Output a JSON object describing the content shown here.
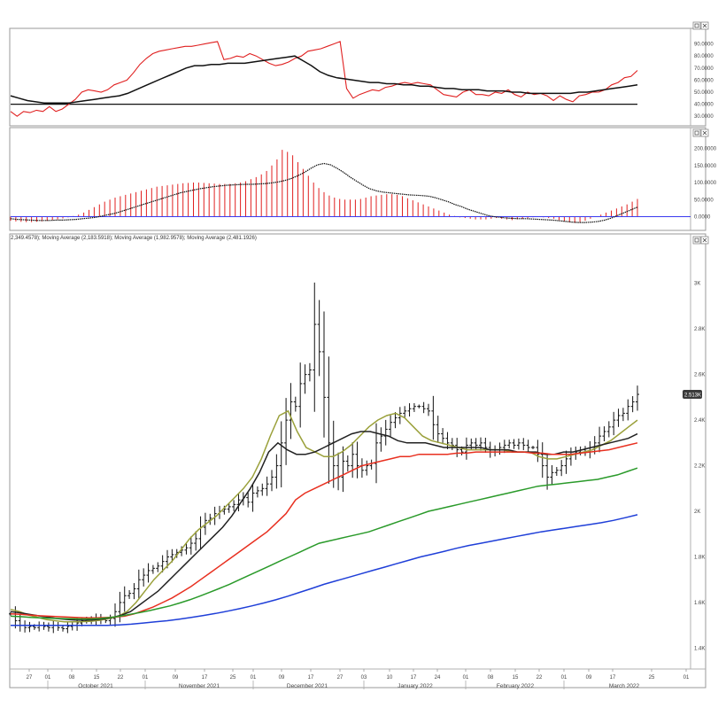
{
  "chart_data": [
    {
      "type": "line",
      "panel": "rsi",
      "ylim": [
        25,
        100
      ],
      "y_ticks": [
        "90.0000",
        "80.0000",
        "70.0000",
        "60.0000",
        "50.0000",
        "40.0000",
        "30.0000"
      ],
      "y_tick_values": [
        90,
        80,
        70,
        60,
        50,
        40,
        30
      ],
      "reference_line": 40,
      "series": [
        {
          "color": "#e02020",
          "values": [
            34,
            30,
            34,
            33,
            35,
            34,
            38,
            34,
            36,
            40,
            44,
            50,
            52,
            51,
            50,
            52,
            56,
            58,
            60,
            66,
            73,
            78,
            82,
            84,
            85,
            86,
            87,
            88,
            88,
            89,
            90,
            91,
            92,
            77,
            78,
            80,
            79,
            82,
            80,
            77,
            74,
            72,
            73,
            75,
            78,
            80,
            84,
            85,
            86,
            88,
            90,
            92,
            53,
            45,
            48,
            50,
            52,
            51,
            54,
            55,
            57,
            58,
            57,
            58,
            57,
            56,
            52,
            48,
            47,
            46,
            50,
            52,
            48,
            48,
            47,
            50,
            49,
            52,
            48,
            46,
            50,
            48,
            49,
            47,
            43,
            47,
            44,
            42,
            47,
            48,
            50,
            50,
            52,
            56,
            58,
            62,
            63,
            68
          ]
        },
        {
          "color": "#111111",
          "values": [
            47,
            45,
            43,
            42,
            41,
            41,
            41,
            41,
            42,
            43,
            44,
            45,
            46,
            47,
            49,
            52,
            55,
            58,
            61,
            64,
            67,
            70,
            72,
            72,
            73,
            73,
            74,
            74,
            74,
            75,
            76,
            77,
            78,
            79,
            80,
            76,
            72,
            67,
            64,
            62,
            61,
            60,
            59,
            58,
            58,
            57,
            57,
            56,
            56,
            55,
            55,
            54,
            53,
            53,
            52,
            52,
            52,
            51,
            51,
            51,
            50,
            50,
            49,
            49,
            49,
            49,
            49,
            49,
            50,
            50,
            51,
            52,
            53,
            54,
            55,
            56
          ]
        }
      ]
    },
    {
      "type": "bar",
      "panel": "macd",
      "ylim": [
        -35,
        230
      ],
      "y_ticks": [
        "200.0000",
        "150.0000",
        "100.0000",
        "50.0000",
        "0.0000"
      ],
      "y_tick_values": [
        200,
        150,
        100,
        50,
        0
      ],
      "zero_line": 0,
      "series": [
        {
          "color": "#e02020",
          "values": [
            -12,
            -14,
            -15,
            -16,
            -16,
            -15,
            -14,
            -12,
            -10,
            -8,
            -5,
            -2,
            2,
            6,
            12,
            20,
            28,
            36,
            44,
            50,
            56,
            60,
            64,
            68,
            72,
            76,
            80,
            84,
            88,
            90,
            92,
            94,
            96,
            98,
            99,
            100,
            100,
            99,
            98,
            97,
            96,
            96,
            96,
            98,
            100,
            104,
            110,
            116,
            124,
            134,
            150,
            168,
            196,
            190,
            180,
            160,
            140,
            120,
            100,
            84,
            72,
            62,
            56,
            52,
            50,
            50,
            50,
            52,
            56,
            60,
            62,
            64,
            66,
            66,
            64,
            60,
            54,
            48,
            42,
            36,
            30,
            24,
            18,
            12,
            6,
            2,
            -2,
            -4,
            -6,
            -8,
            -8,
            -8,
            -6,
            -4,
            -6,
            -8,
            -10,
            -8,
            -6,
            -4,
            -2,
            0,
            -2,
            -4,
            -6,
            -10,
            -14,
            -16,
            -18,
            -16,
            -12,
            -6,
            0,
            6,
            12,
            18,
            24,
            30,
            36,
            44,
            52
          ]
        },
        {
          "color": "#111111",
          "values": [
            -6,
            -8,
            -9,
            -10,
            -11,
            -11,
            -11,
            -10,
            -10,
            -9,
            -8,
            -6,
            -4,
            -2,
            2,
            6,
            10,
            16,
            22,
            28,
            34,
            40,
            46,
            52,
            58,
            64,
            70,
            74,
            78,
            82,
            85,
            88,
            90,
            92,
            93,
            94,
            95,
            95,
            96,
            97,
            99,
            102,
            106,
            112,
            120,
            130,
            142,
            152,
            156,
            152,
            142,
            130,
            116,
            104,
            92,
            82,
            76,
            72,
            70,
            68,
            66,
            64,
            63,
            62,
            60,
            56,
            50,
            44,
            36,
            30,
            22,
            16,
            10,
            4,
            0,
            -2,
            -4,
            -5,
            -6,
            -6,
            -7,
            -8,
            -9,
            -10,
            -12,
            -14,
            -16,
            -17,
            -17,
            -16,
            -14,
            -10,
            -4,
            4,
            12,
            20,
            28
          ]
        }
      ]
    },
    {
      "type": "line",
      "panel": "price",
      "ylim": [
        1320,
        3170
      ],
      "y_ticks": [
        "3K",
        "2.8K",
        "2.6K",
        "2.4K",
        "2.2K",
        "2K",
        "1.8K",
        "1.6K",
        "1.4K"
      ],
      "y_tick_values": [
        3000,
        2800,
        2600,
        2400,
        2200,
        2000,
        1800,
        1600,
        1400
      ],
      "last_price_label": "2.513K",
      "last_price_value": 2513,
      "info_line": "2,349.4578); Moving Average (2,183.5918); Moving Average (1,982.9578); Moving Average (2,481.1926)",
      "x_ticks": [
        "27",
        "01",
        "08",
        "15",
        "22",
        "01",
        "09",
        "17",
        "25",
        "01",
        "09",
        "17",
        "27",
        "03",
        "10",
        "17",
        "24",
        "01",
        "08",
        "15",
        "22",
        "01",
        "09",
        "17",
        "25",
        "01"
      ],
      "months": [
        "October 2021",
        "November 2021",
        "December 2021",
        "January 2022",
        "February 2022",
        "March 2022"
      ],
      "ohlc_closes": [
        1550,
        1520,
        1500,
        1490,
        1495,
        1490,
        1500,
        1495,
        1490,
        1500,
        1490,
        1485,
        1495,
        1500,
        1510,
        1520,
        1525,
        1520,
        1530,
        1525,
        1520,
        1530,
        1560,
        1600,
        1630,
        1640,
        1660,
        1700,
        1720,
        1740,
        1750,
        1760,
        1780,
        1800,
        1810,
        1820,
        1830,
        1840,
        1860,
        1880,
        1930,
        1960,
        1970,
        1990,
        2000,
        2010,
        2020,
        2030,
        2050,
        2060,
        2040,
        2080,
        2090,
        2100,
        2120,
        2150,
        2200,
        2300,
        2400,
        2480,
        2460,
        2560,
        2600,
        2620,
        2820,
        2700,
        2500,
        2300,
        2200,
        2150,
        2220,
        2200,
        2250,
        2200,
        2180,
        2200,
        2210,
        2300,
        2330,
        2360,
        2390,
        2410,
        2430,
        2440,
        2450,
        2460,
        2460,
        2450,
        2440,
        2380,
        2340,
        2320,
        2300,
        2290,
        2270,
        2260,
        2290,
        2300,
        2290,
        2300,
        2280,
        2260,
        2270,
        2280,
        2290,
        2300,
        2290,
        2300,
        2290,
        2280,
        2280,
        2250,
        2200,
        2150,
        2170,
        2180,
        2200,
        2230,
        2250,
        2260,
        2270,
        2260,
        2280,
        2300,
        2330,
        2350,
        2370,
        2400,
        2420,
        2430,
        2460,
        2480,
        2513
      ],
      "series": [
        {
          "color": "#9aa03a",
          "values": [
            1570,
            1560,
            1545,
            1535,
            1525,
            1520,
            1515,
            1515,
            1516,
            1518,
            1522,
            1530,
            1540,
            1560,
            1600,
            1650,
            1700,
            1740,
            1780,
            1830,
            1880,
            1920,
            1950,
            1980,
            2020,
            2060,
            2100,
            2150,
            2230,
            2330,
            2420,
            2440,
            2350,
            2280,
            2260,
            2240,
            2240,
            2260,
            2290,
            2330,
            2370,
            2400,
            2420,
            2430,
            2410,
            2370,
            2330,
            2310,
            2300,
            2290,
            2280,
            2270,
            2270,
            2270,
            2270,
            2270,
            2260,
            2260,
            2260,
            2240,
            2230,
            2230,
            2240,
            2250,
            2260,
            2270,
            2290,
            2310,
            2340,
            2370,
            2400
          ]
        },
        {
          "color": "#222222",
          "values": [
            1560,
            1555,
            1548,
            1542,
            1536,
            1530,
            1526,
            1523,
            1522,
            1524,
            1528,
            1534,
            1544,
            1560,
            1590,
            1620,
            1650,
            1690,
            1730,
            1770,
            1810,
            1850,
            1890,
            1930,
            1980,
            2040,
            2100,
            2170,
            2260,
            2300,
            2270,
            2250,
            2250,
            2260,
            2280,
            2300,
            2320,
            2340,
            2350,
            2350,
            2340,
            2330,
            2310,
            2300,
            2300,
            2300,
            2290,
            2280,
            2280,
            2280,
            2280,
            2280,
            2270,
            2270,
            2270,
            2260,
            2260,
            2260,
            2250,
            2250,
            2260,
            2260,
            2270,
            2280,
            2290,
            2300,
            2310,
            2320,
            2340
          ]
        },
        {
          "color": "#e83020",
          "values": [
            1550,
            1548,
            1545,
            1542,
            1540,
            1538,
            1536,
            1534,
            1533,
            1533,
            1534,
            1536,
            1540,
            1550,
            1565,
            1580,
            1600,
            1620,
            1645,
            1670,
            1700,
            1730,
            1760,
            1790,
            1820,
            1850,
            1880,
            1910,
            1950,
            1990,
            2050,
            2080,
            2100,
            2120,
            2140,
            2160,
            2180,
            2200,
            2210,
            2220,
            2230,
            2240,
            2240,
            2250,
            2250,
            2250,
            2250,
            2255,
            2255,
            2260,
            2260,
            2260,
            2260,
            2260,
            2260,
            2255,
            2255,
            2250,
            2250,
            2250,
            2255,
            2260,
            2265,
            2270,
            2280,
            2290,
            2300
          ]
        },
        {
          "color": "#2a9a2a",
          "values": [
            1540,
            1538,
            1535,
            1533,
            1531,
            1530,
            1529,
            1528,
            1528,
            1530,
            1534,
            1540,
            1548,
            1556,
            1565,
            1575,
            1585,
            1598,
            1612,
            1628,
            1645,
            1662,
            1680,
            1700,
            1720,
            1740,
            1760,
            1780,
            1800,
            1820,
            1840,
            1860,
            1870,
            1880,
            1890,
            1900,
            1910,
            1925,
            1940,
            1955,
            1970,
            1985,
            2000,
            2010,
            2020,
            2030,
            2040,
            2050,
            2060,
            2070,
            2080,
            2090,
            2100,
            2110,
            2115,
            2120,
            2125,
            2130,
            2135,
            2140,
            2150,
            2160,
            2175,
            2190
          ]
        },
        {
          "color": "#1f3fd8",
          "values": [
            1500,
            1500,
            1500,
            1500,
            1500,
            1500,
            1500,
            1500,
            1500,
            1502,
            1505,
            1510,
            1515,
            1520,
            1527,
            1535,
            1543,
            1552,
            1562,
            1573,
            1585,
            1598,
            1612,
            1628,
            1645,
            1662,
            1680,
            1695,
            1710,
            1725,
            1740,
            1755,
            1770,
            1785,
            1800,
            1812,
            1825,
            1838,
            1850,
            1860,
            1870,
            1880,
            1890,
            1900,
            1910,
            1918,
            1926,
            1934,
            1942,
            1950,
            1960,
            1972,
            1985
          ]
        }
      ]
    }
  ]
}
